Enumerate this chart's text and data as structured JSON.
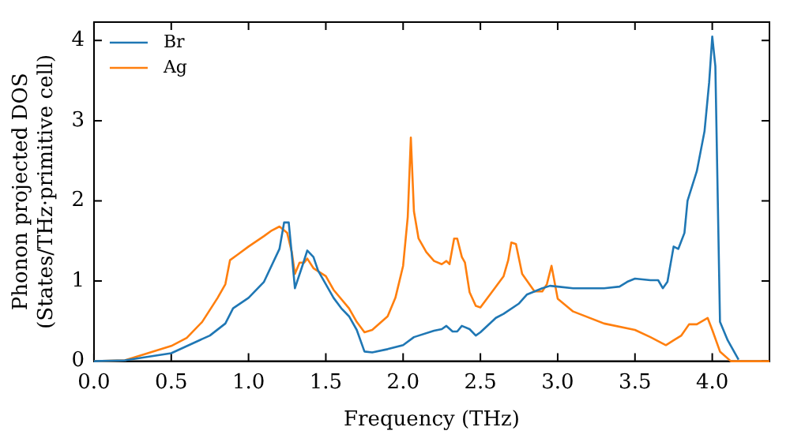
{
  "chart_data": {
    "type": "line",
    "xlabel": "Frequency (THz)",
    "ylabel": "Phonon projected DOS\n(States/THz·primitive cell)",
    "xlim": [
      0,
      4.37
    ],
    "ylim": [
      0,
      4.23
    ],
    "xticks": [
      {
        "value": 0,
        "label": "0.0"
      },
      0.5,
      {
        "value": 1,
        "label": "1.0"
      },
      1.5,
      {
        "value": 2,
        "label": "2.0"
      },
      2.5,
      {
        "value": 3,
        "label": "3.0"
      },
      3.5,
      {
        "value": 4,
        "label": "4.0"
      }
    ],
    "yticks": [
      0,
      1,
      2,
      3,
      4
    ],
    "grid": false,
    "legend": "top left",
    "marker": "none",
    "line_style": "solid",
    "series": [
      {
        "name": "Br",
        "color": "#1f77b4",
        "x": [
          0,
          0.2,
          0.5,
          0.75,
          0.85,
          0.9,
          1.0,
          1.1,
          1.2,
          1.23,
          1.26,
          1.28,
          1.3,
          1.35,
          1.38,
          1.42,
          1.45,
          1.5,
          1.55,
          1.6,
          1.65,
          1.7,
          1.75,
          1.8,
          1.9,
          2.0,
          2.07,
          2.2,
          2.25,
          2.28,
          2.32,
          2.35,
          2.38,
          2.43,
          2.47,
          2.5,
          2.6,
          2.65,
          2.75,
          2.8,
          2.9,
          2.95,
          3.0,
          3.1,
          3.3,
          3.4,
          3.45,
          3.5,
          3.6,
          3.65,
          3.68,
          3.71,
          3.75,
          3.78,
          3.82,
          3.84,
          3.9,
          3.95,
          3.98,
          4.0,
          4.02,
          4.05,
          4.1,
          4.17
        ],
        "values": [
          0,
          0.01,
          0.1,
          0.32,
          0.47,
          0.66,
          0.79,
          0.99,
          1.4,
          1.73,
          1.73,
          1.33,
          0.91,
          1.2,
          1.38,
          1.3,
          1.13,
          0.96,
          0.79,
          0.66,
          0.56,
          0.39,
          0.12,
          0.11,
          0.15,
          0.2,
          0.3,
          0.38,
          0.4,
          0.44,
          0.37,
          0.37,
          0.44,
          0.4,
          0.32,
          0.36,
          0.54,
          0.59,
          0.72,
          0.83,
          0.91,
          0.94,
          0.93,
          0.91,
          0.91,
          0.93,
          0.99,
          1.03,
          1.01,
          1.01,
          0.91,
          0.99,
          1.43,
          1.4,
          1.6,
          2.0,
          2.37,
          2.87,
          3.48,
          4.05,
          3.68,
          0.49,
          0.26,
          0.02
        ]
      },
      {
        "name": "Ag",
        "color": "#ff7f0e",
        "x": [
          0,
          0.2,
          0.5,
          0.6,
          0.7,
          0.8,
          0.85,
          0.88,
          0.93,
          1.0,
          1.1,
          1.15,
          1.2,
          1.25,
          1.28,
          1.3,
          1.33,
          1.36,
          1.38,
          1.42,
          1.5,
          1.55,
          1.65,
          1.7,
          1.75,
          1.8,
          1.9,
          1.95,
          2.0,
          2.03,
          2.05,
          2.07,
          2.1,
          2.15,
          2.2,
          2.25,
          2.28,
          2.3,
          2.33,
          2.35,
          2.38,
          2.4,
          2.43,
          2.47,
          2.5,
          2.6,
          2.65,
          2.68,
          2.7,
          2.73,
          2.77,
          2.85,
          2.9,
          2.93,
          2.96,
          3.0,
          3.1,
          3.3,
          3.5,
          3.6,
          3.7,
          3.75,
          3.8,
          3.85,
          3.9,
          3.97,
          4.0,
          4.05,
          4.12,
          4.37
        ],
        "values": [
          0,
          0.01,
          0.19,
          0.29,
          0.49,
          0.79,
          0.96,
          1.26,
          1.33,
          1.43,
          1.56,
          1.63,
          1.68,
          1.6,
          1.36,
          1.09,
          1.23,
          1.23,
          1.28,
          1.16,
          1.06,
          0.89,
          0.66,
          0.49,
          0.36,
          0.39,
          0.56,
          0.79,
          1.19,
          1.8,
          2.79,
          1.87,
          1.53,
          1.36,
          1.25,
          1.21,
          1.25,
          1.21,
          1.53,
          1.53,
          1.3,
          1.23,
          0.86,
          0.69,
          0.67,
          0.93,
          1.06,
          1.26,
          1.48,
          1.46,
          1.09,
          0.87,
          0.87,
          0.96,
          1.19,
          0.78,
          0.62,
          0.47,
          0.39,
          0.3,
          0.2,
          0.26,
          0.32,
          0.46,
          0.46,
          0.54,
          0.39,
          0.12,
          0,
          0
        ]
      }
    ]
  }
}
